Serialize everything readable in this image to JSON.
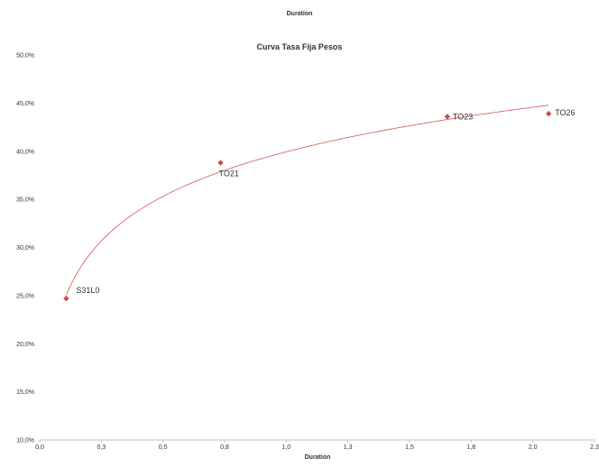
{
  "header": {
    "top_title": "Duration"
  },
  "chart_data": {
    "type": "scatter",
    "title": "Curva Tasa Fija Pesos",
    "xlabel": "Duration",
    "ylabel": "",
    "xlim": [
      0.0,
      2.3
    ],
    "ylim": [
      10.0,
      50.0
    ],
    "x_ticks": [
      "0,0",
      "0,3",
      "0,5",
      "0,8",
      "1,0",
      "1,3",
      "1,5",
      "1,8",
      "2,0",
      "2,3"
    ],
    "y_ticks": [
      "10,0%",
      "15,0%",
      "20,0%",
      "25,0%",
      "30,0%",
      "35,0%",
      "40,0%",
      "45,0%",
      "50,0%"
    ],
    "grid": false,
    "series": [
      {
        "points": [
          {
            "x": 0.11,
            "y": 24.7,
            "label": "S31L0"
          },
          {
            "x": 0.75,
            "y": 38.8,
            "label": "TO21"
          },
          {
            "x": 1.69,
            "y": 43.6,
            "label": "TO23"
          },
          {
            "x": 2.11,
            "y": 43.9,
            "label": "TO26"
          }
        ]
      }
    ],
    "trendline": {
      "type": "logarithmic",
      "x_range": [
        0.11,
        2.11
      ]
    },
    "colors": {
      "marker": "#c0504d",
      "trendline": "#d9534f",
      "axis": "#bfbfbf",
      "text": "#333333"
    }
  }
}
